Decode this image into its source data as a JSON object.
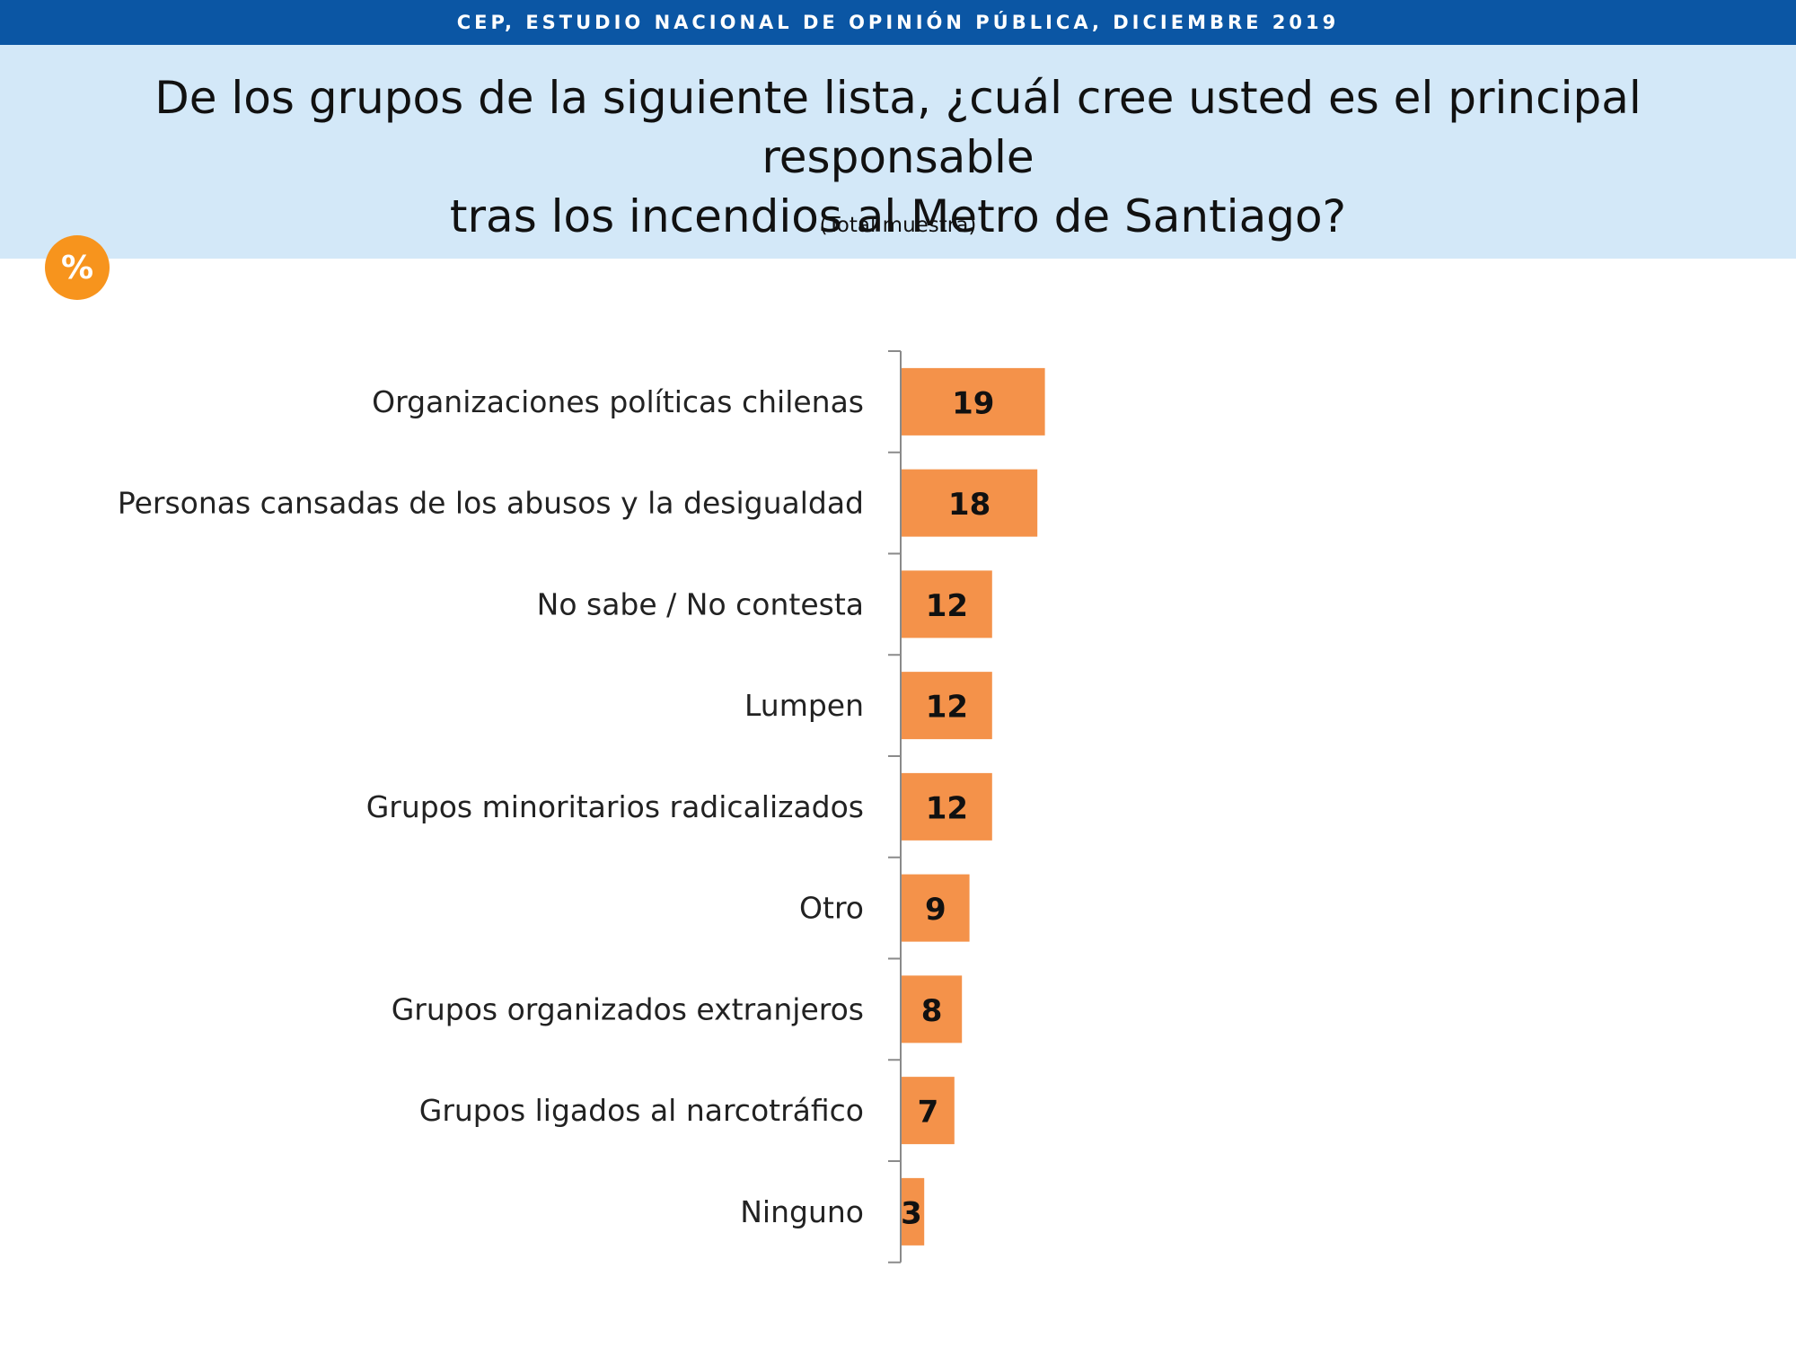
{
  "header": {
    "banner": "CEP, ESTUDIO NACIONAL DE OPINIÓN PÚBLICA, DICIEMBRE 2019",
    "question_line1": "De los grupos de la siguiente lista, ¿cuál cree usted es el principal responsable",
    "question_line2": "tras los incendios al Metro de Santiago?",
    "sample": "(Total muestra)",
    "badge": "%"
  },
  "colors": {
    "banner": "#0b56a4",
    "band": "#d3e8f8",
    "bar": "#f4924a",
    "badge": "#f7941d"
  },
  "chart_data": {
    "type": "bar",
    "orientation": "horizontal",
    "title": "De los grupos de la siguiente lista, ¿cuál cree usted es el principal responsable tras los incendios al Metro de Santiago?",
    "subtitle": "(Total muestra)",
    "unit": "%",
    "categories": [
      "Organizaciones políticas chilenas",
      "Personas cansadas de los abusos y la desigualdad",
      "No sabe / No contesta",
      "Lumpen",
      "Grupos minoritarios radicalizados",
      "Otro",
      "Grupos organizados extranjeros",
      "Grupos ligados al narcotráfico",
      "Ninguno"
    ],
    "values": [
      19,
      18,
      12,
      12,
      12,
      9,
      8,
      7,
      3
    ],
    "data_labels": [
      "19",
      "18",
      "12",
      "12",
      "12",
      "9",
      "8",
      "7",
      "3"
    ],
    "xlim": [
      0,
      100
    ],
    "grid": false,
    "legend": "none"
  }
}
